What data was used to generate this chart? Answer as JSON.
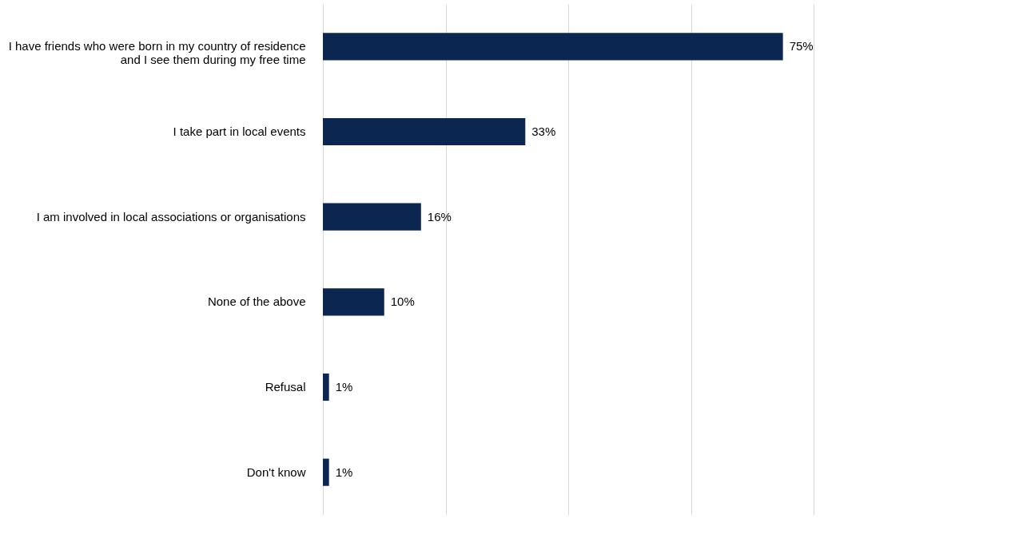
{
  "chart_data": {
    "type": "bar",
    "orientation": "horizontal",
    "categories": [
      "I have friends who were born in my country of residence and I see them during my free time",
      "I take part in local events",
      "I am involved in local associations or organisations",
      "None of the above",
      "Refusal",
      "Don't know"
    ],
    "values": [
      75,
      33,
      16,
      10,
      1,
      1
    ],
    "value_labels": [
      "75%",
      "33%",
      "16%",
      "10%",
      "1%",
      "1%"
    ],
    "color": "#0b2650",
    "xlim": [
      0,
      80
    ],
    "xticks": [
      {
        "value": 0,
        "label": null
      },
      {
        "value": 20,
        "label": null
      },
      {
        "value": 40,
        "label": null
      },
      {
        "value": 60,
        "label": null
      },
      {
        "value": 80,
        "label": null
      }
    ],
    "grid": "x"
  }
}
